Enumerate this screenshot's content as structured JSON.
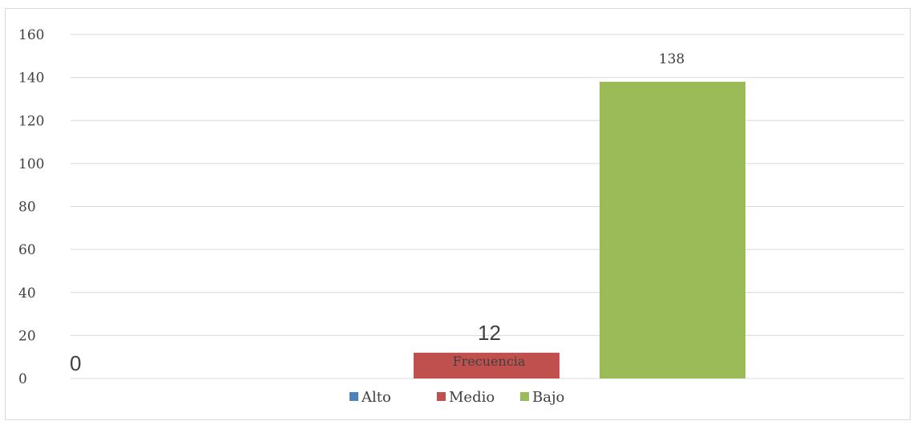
{
  "chart_data": {
    "type": "bar",
    "categories": [
      "Frecuencia"
    ],
    "series": [
      {
        "name": "Alto",
        "values": [
          0
        ],
        "color": "#4f81bd",
        "label": "0"
      },
      {
        "name": "Medio",
        "values": [
          12
        ],
        "color": "#c0504d",
        "label": "12"
      },
      {
        "name": "Bajo",
        "values": [
          138
        ],
        "color": "#9bbb59",
        "label": "138"
      }
    ],
    "y_ticks": [
      "160",
      "140",
      "120",
      "100",
      "80",
      "60",
      "40",
      "20",
      "0"
    ],
    "ylim": [
      0,
      160
    ],
    "grid": true,
    "legend": "bottom"
  }
}
